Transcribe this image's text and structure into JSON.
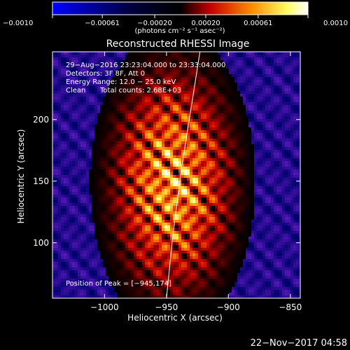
{
  "colorbar": {
    "tick_labels": [
      "−0.0010",
      "−0.00061",
      "−0.00020",
      "0.00020",
      "0.00061",
      "0.0010"
    ],
    "tick_values": [
      -0.001,
      -0.00061,
      -0.0002,
      0.0002,
      0.00061,
      0.001
    ],
    "unit_label": "(photons cm⁻² s⁻¹ asec⁻²)",
    "range": [
      -0.001,
      0.001
    ],
    "colors": [
      "#0000ff",
      "#000000",
      "#c80000",
      "#ff8c00",
      "#ffff64",
      "#ffffff"
    ]
  },
  "chart_data": {
    "type": "heatmap",
    "title": "Reconstructed RHESSI Image",
    "xlabel": "Heliocentric X (arcsec)",
    "ylabel": "Heliocentric Y (arcsec)",
    "xlim": [
      -1042,
      -842
    ],
    "ylim": [
      55,
      255
    ],
    "x_ticks": [
      -1000,
      -950,
      -900,
      -850
    ],
    "x_tick_labels": [
      "−1000",
      "−950",
      "−900",
      "−850"
    ],
    "y_ticks": [
      100,
      150,
      200
    ],
    "y_tick_labels": [
      "100",
      "150",
      "200"
    ],
    "peak": {
      "x": -945,
      "y": 174
    },
    "limb_curve": [
      [
        -950,
        55
      ],
      [
        -945,
        105
      ],
      [
        -938,
        160
      ],
      [
        -930,
        210
      ],
      [
        -923,
        255
      ]
    ]
  },
  "annotations": {
    "time_range": "29−Aug−2016 23:23:04.000 to 23:33:04.000",
    "detectors": "Detectors: 3F 8F, Att 0",
    "energy_range": "Energy Range: 12.0 − 25.0 keV",
    "algorithm": "Clean",
    "total_counts": "Total counts: 2.68E+03",
    "peak_position": "Position of Peak = [−945,174]"
  },
  "footer": {
    "timestamp": "22−Nov−2017 04:58"
  }
}
